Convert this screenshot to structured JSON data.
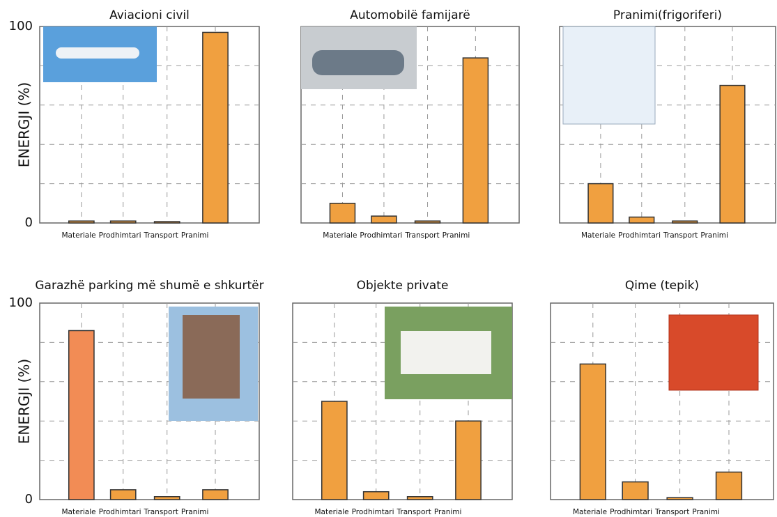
{
  "chart_data": [
    {
      "type": "bar",
      "title": "Aviacioni civil",
      "ylabel": "ENERGJI (%)",
      "categories": [
        "Materiale",
        "Prodhimtari",
        "Transport",
        "Pranimi"
      ],
      "values": [
        1,
        1,
        0.7,
        97
      ],
      "colors": [
        "#f0a040",
        "#f0a040",
        "#f0a040",
        "#f0a040"
      ],
      "ylim": [
        0,
        100
      ],
      "yticks": [
        0,
        100
      ],
      "ygrid": [
        20,
        40,
        60,
        80
      ]
    },
    {
      "type": "bar",
      "title": "Automobilë famijarë",
      "categories": [
        "Materiale",
        "Prodhimtari",
        "Transport",
        "Pranimi"
      ],
      "values": [
        10,
        3.5,
        1,
        84
      ],
      "colors": [
        "#f0a040",
        "#f0a040",
        "#f0a040",
        "#f0a040"
      ],
      "ylim": [
        0,
        100
      ],
      "ygrid": [
        20,
        40,
        60,
        80
      ]
    },
    {
      "type": "bar",
      "title": "Pranimi(frigoriferi)",
      "categories": [
        "Materiale",
        "Prodhimtari",
        "Transport",
        "Pranimi"
      ],
      "values": [
        20,
        3,
        1,
        70
      ],
      "colors": [
        "#f0a040",
        "#f0a040",
        "#f0a040",
        "#f0a040"
      ],
      "ylim": [
        0,
        100
      ],
      "ygrid": [
        20,
        40,
        60,
        80
      ]
    },
    {
      "type": "bar",
      "title": "Garazhë parking më shumë e shkurtër",
      "ylabel": "ENERGJI (%)",
      "categories": [
        "Materiale",
        "Prodhimtari",
        "Transport",
        "Pranimi"
      ],
      "values": [
        86,
        5,
        1.5,
        5
      ],
      "colors": [
        "#f28c55",
        "#f0a040",
        "#f0a040",
        "#f0a040"
      ],
      "ylim": [
        0,
        100
      ],
      "yticks": [
        0,
        100
      ],
      "ygrid": [
        20,
        40,
        60,
        80
      ]
    },
    {
      "type": "bar",
      "title": "Objekte private",
      "categories": [
        "Materiale",
        "Prodhimtari",
        "Transport",
        "Pranimi"
      ],
      "values": [
        50,
        4,
        1.5,
        40
      ],
      "colors": [
        "#f0a040",
        "#f0a040",
        "#f0a040",
        "#f0a040"
      ],
      "ylim": [
        0,
        100
      ],
      "ygrid": [
        20,
        40,
        60,
        80
      ]
    },
    {
      "type": "bar",
      "title": "Qime (tepik)",
      "categories": [
        "Materiale",
        "Prodhimtari",
        "Transport",
        "Pranimi"
      ],
      "values": [
        69,
        9,
        1,
        14
      ],
      "colors": [
        "#f0a040",
        "#f0a040",
        "#f0a040",
        "#f0a040"
      ],
      "ylim": [
        0,
        100
      ],
      "ygrid": [
        20,
        40,
        60,
        80
      ]
    }
  ]
}
